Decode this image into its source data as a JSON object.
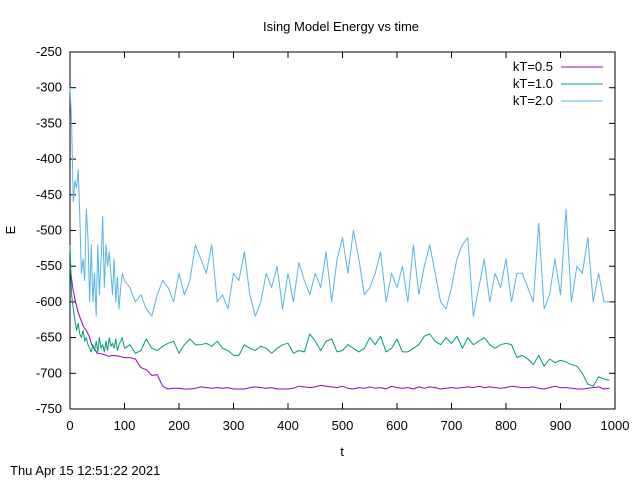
{
  "timestamp": "Thu Apr 15 12:51:22 2021",
  "chart_data": {
    "type": "line",
    "title": "Ising Model Energy vs time",
    "xlabel": "t",
    "ylabel": "E",
    "xlim": [
      0,
      1000
    ],
    "ylim": [
      -750,
      -250
    ],
    "xticks": [
      0,
      100,
      200,
      300,
      400,
      500,
      600,
      700,
      800,
      900,
      1000
    ],
    "yticks": [
      -250,
      -300,
      -350,
      -400,
      -450,
      -500,
      -550,
      -600,
      -650,
      -700,
      -750
    ],
    "grid": false,
    "legend_position": "top-right",
    "series": [
      {
        "name": "kT=0.5",
        "color": "#9400d3",
        "x": [
          0,
          5,
          10,
          15,
          20,
          25,
          30,
          35,
          40,
          50,
          60,
          70,
          80,
          90,
          100,
          110,
          120,
          130,
          140,
          150,
          160,
          170,
          180,
          190,
          200,
          210,
          220,
          230,
          240,
          250,
          260,
          270,
          280,
          290,
          300,
          310,
          320,
          330,
          340,
          350,
          360,
          370,
          380,
          390,
          400,
          410,
          420,
          430,
          440,
          450,
          460,
          470,
          480,
          490,
          500,
          510,
          520,
          530,
          540,
          550,
          560,
          570,
          580,
          590,
          600,
          610,
          620,
          630,
          640,
          650,
          660,
          670,
          680,
          690,
          700,
          710,
          720,
          730,
          740,
          750,
          760,
          770,
          780,
          790,
          800,
          810,
          820,
          830,
          840,
          850,
          860,
          870,
          880,
          890,
          900,
          910,
          920,
          930,
          940,
          950,
          960,
          970,
          980,
          990
        ],
        "values": [
          -550,
          -580,
          -600,
          -615,
          -625,
          -635,
          -640,
          -648,
          -660,
          -672,
          -673,
          -676,
          -675,
          -676,
          -678,
          -678,
          -680,
          -692,
          -695,
          -703,
          -702,
          -718,
          -722,
          -721,
          -721,
          -722,
          -722,
          -721,
          -719,
          -720,
          -721,
          -720,
          -721,
          -720,
          -722,
          -722,
          -722,
          -720,
          -719,
          -720,
          -721,
          -720,
          -722,
          -722,
          -722,
          -721,
          -718,
          -719,
          -720,
          -719,
          -717,
          -718,
          -719,
          -720,
          -718,
          -721,
          -722,
          -720,
          -721,
          -719,
          -721,
          -720,
          -722,
          -718,
          -720,
          -721,
          -720,
          -722,
          -719,
          -721,
          -719,
          -720,
          -722,
          -721,
          -720,
          -721,
          -720,
          -719,
          -720,
          -718,
          -720,
          -719,
          -720,
          -721,
          -720,
          -718,
          -719,
          -720,
          -720,
          -719,
          -721,
          -722,
          -720,
          -718,
          -720,
          -720,
          -721,
          -722,
          -722,
          -721,
          -720,
          -719,
          -722,
          -721
        ]
      },
      {
        "name": "kT=1.0",
        "color": "#009e73",
        "x": [
          0,
          3,
          6,
          9,
          12,
          15,
          18,
          21,
          24,
          27,
          30,
          33,
          36,
          39,
          42,
          45,
          48,
          51,
          54,
          57,
          60,
          63,
          66,
          69,
          72,
          75,
          78,
          81,
          84,
          87,
          90,
          93,
          96,
          100,
          110,
          120,
          130,
          140,
          150,
          160,
          170,
          180,
          190,
          200,
          210,
          220,
          230,
          240,
          250,
          260,
          270,
          280,
          290,
          300,
          310,
          320,
          330,
          340,
          350,
          360,
          370,
          380,
          390,
          400,
          410,
          420,
          430,
          440,
          450,
          460,
          470,
          480,
          490,
          500,
          510,
          520,
          530,
          540,
          550,
          560,
          570,
          580,
          590,
          600,
          610,
          620,
          630,
          640,
          650,
          660,
          670,
          680,
          690,
          700,
          710,
          720,
          730,
          740,
          750,
          760,
          770,
          780,
          790,
          800,
          810,
          820,
          830,
          840,
          850,
          860,
          870,
          880,
          890,
          900,
          910,
          920,
          930,
          940,
          950,
          960,
          970,
          980,
          990
        ],
        "values": [
          -520,
          -590,
          -610,
          -625,
          -640,
          -630,
          -645,
          -650,
          -640,
          -655,
          -650,
          -660,
          -665,
          -670,
          -660,
          -668,
          -655,
          -670,
          -650,
          -665,
          -660,
          -670,
          -655,
          -668,
          -650,
          -662,
          -658,
          -665,
          -652,
          -668,
          -660,
          -655,
          -650,
          -665,
          -660,
          -672,
          -668,
          -652,
          -665,
          -668,
          -662,
          -658,
          -655,
          -672,
          -660,
          -652,
          -660,
          -660,
          -658,
          -662,
          -655,
          -665,
          -668,
          -675,
          -675,
          -660,
          -665,
          -668,
          -662,
          -665,
          -672,
          -665,
          -660,
          -658,
          -672,
          -668,
          -670,
          -645,
          -655,
          -668,
          -655,
          -652,
          -670,
          -668,
          -660,
          -665,
          -670,
          -665,
          -650,
          -660,
          -648,
          -670,
          -665,
          -652,
          -670,
          -670,
          -665,
          -660,
          -648,
          -645,
          -655,
          -660,
          -650,
          -658,
          -648,
          -665,
          -650,
          -660,
          -655,
          -650,
          -660,
          -665,
          -660,
          -658,
          -660,
          -678,
          -675,
          -680,
          -688,
          -675,
          -690,
          -680,
          -685,
          -682,
          -684,
          -688,
          -690,
          -700,
          -715,
          -718,
          -705,
          -708,
          -710
        ]
      },
      {
        "name": "kT=2.0",
        "color": "#56b4e9",
        "x": [
          0,
          3,
          6,
          9,
          12,
          15,
          18,
          21,
          24,
          27,
          30,
          33,
          36,
          39,
          42,
          45,
          48,
          51,
          54,
          57,
          60,
          63,
          66,
          69,
          72,
          75,
          78,
          81,
          84,
          87,
          90,
          93,
          96,
          100,
          110,
          120,
          130,
          140,
          150,
          160,
          170,
          180,
          190,
          200,
          210,
          220,
          230,
          240,
          250,
          260,
          270,
          280,
          290,
          300,
          310,
          320,
          330,
          340,
          350,
          360,
          370,
          380,
          390,
          400,
          410,
          420,
          430,
          440,
          450,
          460,
          470,
          480,
          490,
          500,
          510,
          520,
          530,
          540,
          550,
          560,
          570,
          580,
          590,
          600,
          610,
          620,
          630,
          640,
          650,
          660,
          670,
          680,
          690,
          700,
          710,
          720,
          730,
          740,
          750,
          760,
          770,
          780,
          790,
          800,
          810,
          820,
          830,
          840,
          850,
          860,
          870,
          880,
          890,
          900,
          910,
          920,
          930,
          940,
          950,
          960,
          970,
          980,
          990
        ],
        "values": [
          -300,
          -350,
          -460,
          -430,
          -440,
          -415,
          -480,
          -560,
          -540,
          -570,
          -470,
          -510,
          -600,
          -520,
          -600,
          -560,
          -620,
          -520,
          -590,
          -540,
          -480,
          -580,
          -520,
          -550,
          -530,
          -560,
          -590,
          -540,
          -600,
          -565,
          -610,
          -580,
          -560,
          -570,
          -580,
          -600,
          -590,
          -610,
          -620,
          -590,
          -570,
          -580,
          -600,
          -560,
          -590,
          -570,
          -520,
          -540,
          -560,
          -520,
          -600,
          -590,
          -610,
          -560,
          -570,
          -530,
          -590,
          -620,
          -600,
          -560,
          -580,
          -550,
          -610,
          -560,
          -600,
          -545,
          -570,
          -590,
          -560,
          -580,
          -530,
          -600,
          -540,
          -510,
          -560,
          -500,
          -540,
          -590,
          -580,
          -560,
          -530,
          -600,
          -560,
          -580,
          -550,
          -600,
          -520,
          -590,
          -550,
          -520,
          -560,
          -600,
          -610,
          -580,
          -540,
          -520,
          -510,
          -620,
          -580,
          -540,
          -600,
          -560,
          -580,
          -540,
          -600,
          -560,
          -560,
          -580,
          -600,
          -490,
          -610,
          -590,
          -540,
          -590,
          -470,
          -600,
          -550,
          -560,
          -510,
          -600,
          -560,
          -600,
          -600
        ]
      }
    ]
  }
}
